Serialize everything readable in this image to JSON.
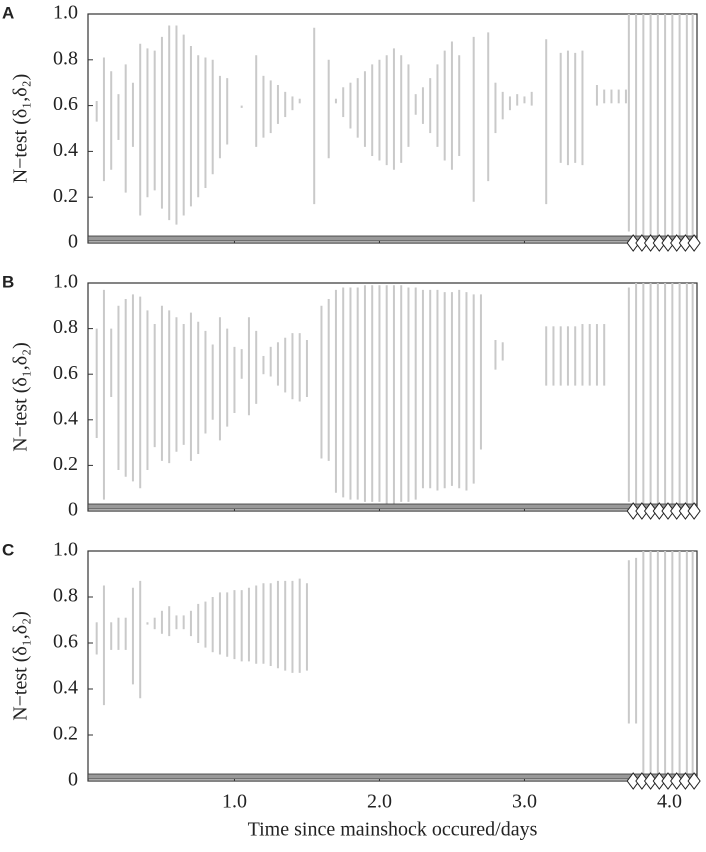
{
  "chart_data": [
    {
      "type": "interval",
      "panel": "A",
      "y_label": "N−test (δ₁,δ₂)",
      "color": "#c9c9c9",
      "x": [
        0.05,
        0.1,
        0.15,
        0.2,
        0.25,
        0.3,
        0.35,
        0.4,
        0.45,
        0.5,
        0.55,
        0.6,
        0.65,
        0.7,
        0.75,
        0.8,
        0.85,
        0.9,
        0.95,
        1.05,
        1.15,
        1.2,
        1.25,
        1.3,
        1.35,
        1.4,
        1.45,
        1.55,
        1.65,
        1.7,
        1.75,
        1.8,
        1.85,
        1.9,
        1.95,
        2.0,
        2.05,
        2.1,
        2.15,
        2.2,
        2.25,
        2.3,
        2.35,
        2.4,
        2.45,
        2.5,
        2.55,
        2.65,
        2.75,
        2.8,
        2.85,
        2.9,
        2.95,
        3.0,
        3.05,
        3.15,
        3.25,
        3.3,
        3.35,
        3.4,
        3.5,
        3.55,
        3.6,
        3.65,
        3.7,
        3.72,
        3.77,
        3.82,
        3.87,
        3.92,
        3.97,
        4.02,
        4.07,
        4.12,
        4.16
      ],
      "low": [
        0.53,
        0.27,
        0.32,
        0.45,
        0.22,
        0.42,
        0.12,
        0.2,
        0.23,
        0.15,
        0.1,
        0.08,
        0.12,
        0.16,
        0.2,
        0.24,
        0.3,
        0.37,
        0.43,
        0.59,
        0.42,
        0.46,
        0.48,
        0.52,
        0.55,
        0.58,
        0.61,
        0.17,
        0.37,
        0.61,
        0.55,
        0.5,
        0.46,
        0.42,
        0.38,
        0.36,
        0.34,
        0.32,
        0.35,
        0.42,
        0.56,
        0.52,
        0.48,
        0.42,
        0.36,
        0.32,
        0.38,
        0.18,
        0.27,
        0.48,
        0.54,
        0.58,
        0.6,
        0.61,
        0.6,
        0.17,
        0.35,
        0.34,
        0.35,
        0.34,
        0.6,
        0.61,
        0.61,
        0.61,
        0.61,
        0.05,
        0.02,
        0.02,
        0.02,
        0.02,
        0.02,
        0.02,
        0.02,
        0.02,
        0.02
      ],
      "high": [
        0.62,
        0.81,
        0.75,
        0.65,
        0.78,
        0.7,
        0.87,
        0.85,
        0.84,
        0.9,
        0.95,
        0.95,
        0.91,
        0.86,
        0.82,
        0.81,
        0.8,
        0.73,
        0.72,
        0.6,
        0.82,
        0.73,
        0.71,
        0.69,
        0.66,
        0.64,
        0.63,
        0.94,
        0.8,
        0.63,
        0.68,
        0.7,
        0.72,
        0.75,
        0.78,
        0.8,
        0.82,
        0.85,
        0.82,
        0.78,
        0.65,
        0.68,
        0.72,
        0.78,
        0.84,
        0.88,
        0.82,
        0.9,
        0.92,
        0.7,
        0.66,
        0.64,
        0.65,
        0.64,
        0.66,
        0.89,
        0.83,
        0.84,
        0.83,
        0.84,
        0.69,
        0.67,
        0.67,
        0.67,
        0.67,
        1,
        1,
        1,
        1,
        1,
        1,
        1,
        1,
        1,
        1
      ],
      "markers": {
        "x": [
          3.75,
          3.81,
          3.87,
          3.93,
          3.99,
          4.05,
          4.11,
          4.17
        ],
        "values": [
          0,
          0,
          0,
          0,
          0,
          0,
          0,
          0
        ]
      },
      "xlim": [
        -0.01,
        4.19
      ],
      "ylim": [
        0,
        1
      ],
      "xticks": [
        1,
        2,
        3,
        4
      ],
      "show_xtick_labels": false,
      "yticks": [
        0,
        0.2,
        0.4,
        0.6,
        0.8,
        {
          "value": 1,
          "label": "1.0"
        }
      ]
    },
    {
      "type": "interval",
      "panel": "B",
      "y_label": "N−test (δ₁,δ₂)",
      "color": "#c9c9c9",
      "x": [
        0.05,
        0.1,
        0.15,
        0.2,
        0.25,
        0.3,
        0.35,
        0.4,
        0.45,
        0.5,
        0.55,
        0.6,
        0.65,
        0.7,
        0.75,
        0.8,
        0.85,
        0.9,
        0.95,
        1.0,
        1.05,
        1.1,
        1.15,
        1.2,
        1.25,
        1.3,
        1.35,
        1.4,
        1.45,
        1.5,
        1.6,
        1.65,
        1.7,
        1.75,
        1.8,
        1.85,
        1.9,
        1.95,
        2.0,
        2.05,
        2.1,
        2.15,
        2.2,
        2.25,
        2.3,
        2.35,
        2.4,
        2.45,
        2.5,
        2.55,
        2.6,
        2.65,
        2.7,
        2.8,
        2.85,
        3.15,
        3.2,
        3.25,
        3.3,
        3.35,
        3.4,
        3.45,
        3.5,
        3.55,
        3.72,
        3.77,
        3.82,
        3.87,
        3.92,
        3.97,
        4.02,
        4.07,
        4.12,
        4.16
      ],
      "low": [
        0.32,
        0.05,
        0.5,
        0.18,
        0.15,
        0.13,
        0.1,
        0.18,
        0.28,
        0.22,
        0.21,
        0.26,
        0.29,
        0.22,
        0.25,
        0.34,
        0.4,
        0.31,
        0.37,
        0.43,
        0.58,
        0.42,
        0.47,
        0.6,
        0.59,
        0.55,
        0.52,
        0.49,
        0.48,
        0.5,
        0.23,
        0.22,
        0.08,
        0.06,
        0.05,
        0.05,
        0.04,
        0.04,
        0.04,
        0.03,
        0.03,
        0.04,
        0.04,
        0.05,
        0.1,
        0.1,
        0.09,
        0.1,
        0.11,
        0.1,
        0.09,
        0.12,
        0.27,
        0.62,
        0.66,
        0.55,
        0.55,
        0.55,
        0.55,
        0.55,
        0.55,
        0.55,
        0.55,
        0.55,
        0.04,
        0.03,
        0.03,
        0.03,
        0.03,
        0.03,
        0.03,
        0.03,
        0.03,
        0.03
      ],
      "high": [
        0.8,
        0.97,
        0.8,
        0.9,
        0.93,
        0.95,
        0.94,
        0.88,
        0.82,
        0.9,
        0.88,
        0.85,
        0.82,
        0.87,
        0.83,
        0.79,
        0.73,
        0.85,
        0.8,
        0.72,
        0.71,
        0.85,
        0.79,
        0.68,
        0.72,
        0.74,
        0.76,
        0.78,
        0.78,
        0.75,
        0.9,
        0.93,
        0.97,
        0.98,
        0.98,
        0.98,
        0.99,
        0.99,
        0.99,
        0.99,
        0.99,
        0.99,
        0.98,
        0.98,
        0.97,
        0.97,
        0.97,
        0.96,
        0.96,
        0.97,
        0.96,
        0.95,
        0.95,
        0.75,
        0.74,
        0.81,
        0.81,
        0.81,
        0.81,
        0.81,
        0.82,
        0.82,
        0.82,
        0.82,
        0.98,
        1,
        1,
        1,
        1,
        1,
        1,
        1,
        1,
        1
      ],
      "markers": {
        "x": [
          3.75,
          3.81,
          3.87,
          3.93,
          3.99,
          4.05,
          4.11,
          4.17
        ],
        "values": [
          0,
          0,
          0,
          0,
          0,
          0,
          0,
          0
        ]
      },
      "xlim": [
        -0.01,
        4.19
      ],
      "ylim": [
        0,
        1
      ],
      "xticks": [
        1,
        2,
        3,
        4
      ],
      "show_xtick_labels": false,
      "yticks": [
        0,
        0.2,
        0.4,
        0.6,
        0.8,
        {
          "value": 1,
          "label": "1.0"
        }
      ]
    },
    {
      "type": "interval",
      "panel": "C",
      "y_label": "N−test (δ₁,δ₂)",
      "x_label": "Time since mainshock occured/days",
      "color": "#c9c9c9",
      "x": [
        0.05,
        0.1,
        0.15,
        0.2,
        0.25,
        0.3,
        0.35,
        0.4,
        0.45,
        0.5,
        0.55,
        0.6,
        0.65,
        0.7,
        0.75,
        0.8,
        0.85,
        0.9,
        0.95,
        1.0,
        1.05,
        1.1,
        1.15,
        1.2,
        1.25,
        1.3,
        1.35,
        1.4,
        1.45,
        1.5,
        3.72,
        3.77,
        3.82,
        3.87,
        3.92,
        3.97,
        4.02,
        4.07,
        4.12,
        4.16
      ],
      "low": [
        0.55,
        0.33,
        0.57,
        0.57,
        0.57,
        0.42,
        0.36,
        0.68,
        0.66,
        0.64,
        0.63,
        0.66,
        0.66,
        0.63,
        0.6,
        0.58,
        0.56,
        0.55,
        0.54,
        0.53,
        0.52,
        0.52,
        0.51,
        0.51,
        0.5,
        0.49,
        0.48,
        0.47,
        0.47,
        0.48,
        0.25,
        0.25,
        0.02,
        0.02,
        0.02,
        0.02,
        0.02,
        0.02,
        0.02,
        0.02
      ],
      "high": [
        0.69,
        0.85,
        0.69,
        0.71,
        0.71,
        0.84,
        0.87,
        0.69,
        0.71,
        0.74,
        0.76,
        0.72,
        0.72,
        0.74,
        0.77,
        0.78,
        0.8,
        0.82,
        0.82,
        0.83,
        0.83,
        0.84,
        0.85,
        0.86,
        0.86,
        0.87,
        0.87,
        0.87,
        0.88,
        0.86,
        0.96,
        0.97,
        1,
        1,
        1,
        1,
        1,
        1,
        1,
        1
      ],
      "markers": {
        "x": [
          3.75,
          3.81,
          3.87,
          3.93,
          3.99,
          4.05,
          4.11,
          4.17
        ],
        "values": [
          0,
          0,
          0,
          0,
          0,
          0,
          0,
          0
        ]
      },
      "xlim": [
        -0.01,
        4.19
      ],
      "ylim": [
        0,
        1
      ],
      "xticks": [
        {
          "value": 1,
          "label": "1.0"
        },
        {
          "value": 2,
          "label": "2.0"
        },
        {
          "value": 3,
          "label": "3.0"
        },
        {
          "value": 4,
          "label": "4.0"
        }
      ],
      "show_xtick_labels": true,
      "yticks": [
        0,
        0.2,
        0.4,
        0.6,
        0.8,
        {
          "value": 1,
          "label": "1.0"
        }
      ]
    }
  ]
}
